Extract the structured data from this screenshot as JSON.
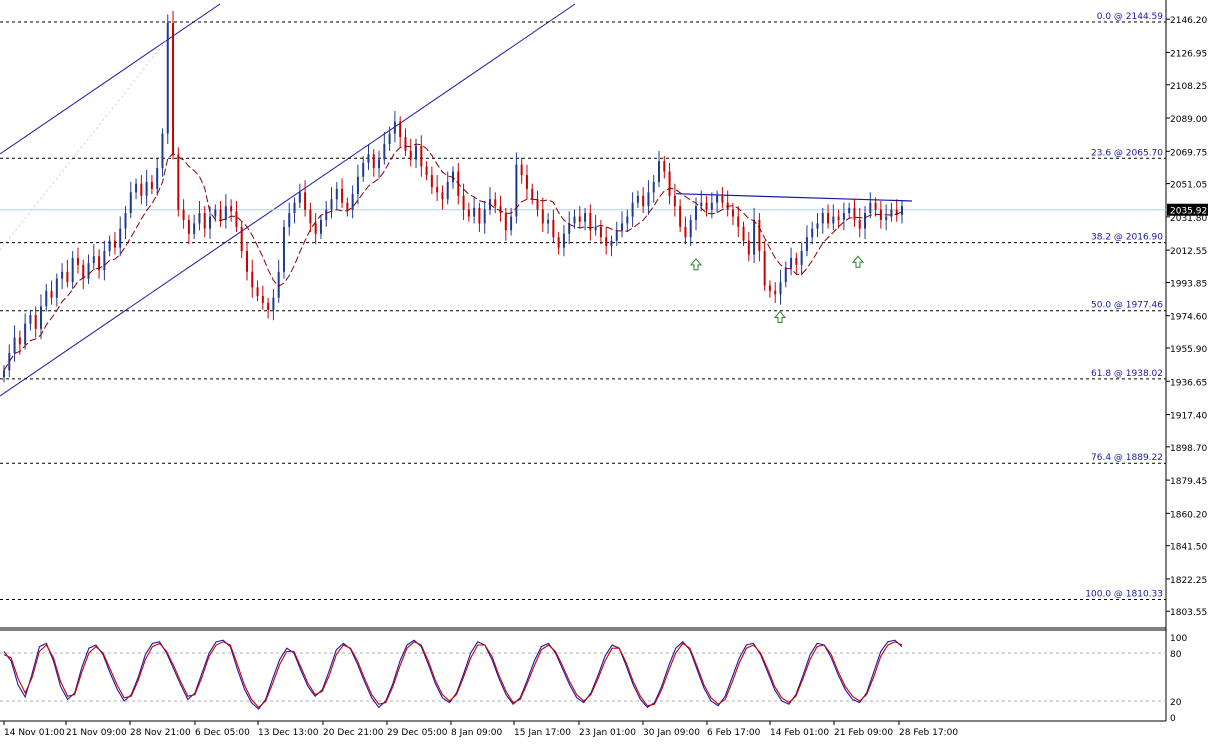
{
  "chart_data": [
    {
      "type": "candlestick",
      "ylim": [
        1795,
        2155
      ],
      "price_ticks": [
        "2146.20",
        "2126.95",
        "2108.25",
        "2089.00",
        "2069.75",
        "2051.05",
        "2031.80",
        "2012.55",
        "1993.85",
        "1974.60",
        "1955.90",
        "1936.65",
        "1917.40",
        "1898.70",
        "1879.45",
        "1860.20",
        "1841.50",
        "1822.25",
        "1803.55"
      ],
      "price_tick_values": [
        2146.2,
        2126.95,
        2108.25,
        2089.0,
        2069.75,
        2051.05,
        2031.8,
        2012.55,
        1993.85,
        1974.6,
        1955.9,
        1936.65,
        1917.4,
        1898.7,
        1879.45,
        1860.2,
        1841.5,
        1822.25,
        1803.55
      ],
      "current_price": 2035.92,
      "current_price_label": "2035.92",
      "fibonacci_levels": [
        {
          "label": "0.0 @ 2144.59",
          "value": 2144.59
        },
        {
          "label": "23.6 @ 2065.70",
          "value": 2065.7
        },
        {
          "label": "38.2 @ 2016.90",
          "value": 2016.9
        },
        {
          "label": "50.0 @ 1977.46",
          "value": 1977.46
        },
        {
          "label": "61.8 @ 1938.02",
          "value": 1938.02
        },
        {
          "label": "76.4 @ 1889.22",
          "value": 1889.22
        },
        {
          "label": "100.0 @ 1810.33",
          "value": 1810.33
        }
      ],
      "neckline": {
        "from": [
          0.57,
          2045.2
        ],
        "to": [
          0.78,
          2041.0
        ]
      },
      "x_ticks": [
        "14 Nov 01:00",
        "21 Nov 09:00",
        "28 Nov 21:00",
        "6 Dec 05:00",
        "13 Dec 13:00",
        "20 Dec 21:00",
        "29 Dec 05:00",
        "8 Jan 09:00",
        "15 Jan 17:00",
        "23 Jan 01:00",
        "30 Jan 09:00",
        "6 Feb 17:00",
        "14 Feb 01:00",
        "21 Feb 09:00",
        "28 Feb 17:00"
      ],
      "close_series": [
        1943,
        1953,
        1962,
        1958,
        1970,
        1975,
        1967,
        1980,
        1989,
        1985,
        1996,
        2000,
        1994,
        2008,
        2004,
        1996,
        2005,
        2009,
        2001,
        2012,
        2018,
        2014,
        2025,
        2034,
        2046,
        2051,
        2044,
        2052,
        2048,
        2060,
        2080,
        2144,
        2068,
        2036,
        2030,
        2022,
        2028,
        2034,
        2025,
        2032,
        2036,
        2030,
        2038,
        2035,
        2026,
        2012,
        2000,
        1991,
        1986,
        1982,
        1978,
        1985,
        2000,
        2026,
        2034,
        2040,
        2046,
        2036,
        2028,
        2022,
        2030,
        2036,
        2042,
        2048,
        2040,
        2036,
        2045,
        2055,
        2063,
        2068,
        2060,
        2065,
        2074,
        2080,
        2087,
        2078,
        2070,
        2065,
        2073,
        2061,
        2056,
        2049,
        2046,
        2042,
        2052,
        2058,
        2044,
        2036,
        2032,
        2037,
        2028,
        2036,
        2042,
        2038,
        2034,
        2024,
        2032,
        2062,
        2056,
        2048,
        2042,
        2036,
        2028,
        2030,
        2020,
        2014,
        2022,
        2028,
        2032,
        2029,
        2034,
        2024,
        2026,
        2020,
        2015,
        2018,
        2024,
        2028,
        2032,
        2040,
        2044,
        2038,
        2046,
        2052,
        2064,
        2058,
        2044,
        2038,
        2026,
        2020,
        2030,
        2038,
        2040,
        2036,
        2040,
        2044,
        2040,
        2036,
        2032,
        2026,
        2018,
        2010,
        2030,
        2012,
        1992,
        1989,
        1987,
        1994,
        2002,
        2008,
        2004,
        2012,
        2020,
        2025,
        2028,
        2034,
        2028,
        2032,
        2030,
        2034,
        2037,
        2030,
        2025,
        2034,
        2040,
        2036,
        2030,
        2032,
        2036,
        2033,
        2038
      ],
      "moving_average_color": "#8b0000",
      "up_color": "#1f3a93",
      "down_color": "#cc0000",
      "markers": [
        {
          "value": 2007.5
        },
        {
          "value": 1977.0
        },
        {
          "value": 2009.0
        }
      ]
    },
    {
      "type": "line",
      "ylim": [
        0,
        100
      ],
      "ticks": [
        "100",
        "80",
        "20",
        "0"
      ],
      "tick_values": [
        100,
        80,
        20,
        0
      ],
      "series": [
        {
          "color": "#1a1aa8",
          "values": [
            82,
            70,
            40,
            25,
            55,
            88,
            92,
            70,
            38,
            22,
            30,
            62,
            86,
            90,
            78,
            55,
            35,
            20,
            28,
            50,
            78,
            92,
            94,
            80,
            60,
            40,
            22,
            30,
            55,
            80,
            94,
            96,
            88,
            60,
            35,
            18,
            10,
            22,
            48,
            72,
            86,
            80,
            58,
            38,
            26,
            34,
            58,
            84,
            92,
            85,
            66,
            44,
            24,
            12,
            20,
            42,
            70,
            90,
            96,
            88,
            66,
            42,
            24,
            18,
            30,
            54,
            80,
            94,
            90,
            72,
            48,
            28,
            16,
            24,
            46,
            70,
            88,
            92,
            80,
            60,
            40,
            24,
            18,
            30,
            52,
            76,
            90,
            86,
            64,
            40,
            22,
            12,
            18,
            38,
            64,
            86,
            94,
            84,
            60,
            36,
            20,
            14,
            26,
            50,
            74,
            90,
            92,
            78,
            56,
            34,
            20,
            16,
            28,
            52,
            78,
            92,
            90,
            74,
            52,
            34,
            22,
            18,
            30,
            56,
            82,
            94,
            96,
            88
          ]
        },
        {
          "color": "#cc0000",
          "values": [
            78,
            74,
            48,
            30,
            50,
            82,
            90,
            74,
            44,
            26,
            28,
            56,
            80,
            88,
            80,
            60,
            40,
            24,
            26,
            46,
            72,
            88,
            92,
            82,
            64,
            44,
            26,
            28,
            50,
            76,
            90,
            94,
            90,
            66,
            40,
            22,
            12,
            20,
            42,
            66,
            82,
            82,
            62,
            42,
            28,
            32,
            52,
            78,
            90,
            86,
            70,
            48,
            28,
            16,
            18,
            38,
            64,
            86,
            94,
            90,
            70,
            46,
            28,
            20,
            28,
            50,
            74,
            90,
            90,
            76,
            52,
            32,
            18,
            22,
            42,
            64,
            84,
            90,
            82,
            64,
            44,
            28,
            20,
            28,
            48,
            70,
            86,
            86,
            68,
            44,
            26,
            14,
            16,
            34,
            58,
            80,
            92,
            86,
            64,
            40,
            24,
            16,
            22,
            44,
            68,
            86,
            90,
            80,
            60,
            38,
            24,
            18,
            26,
            48,
            72,
            88,
            90,
            78,
            56,
            38,
            26,
            20,
            28,
            50,
            76,
            90,
            94,
            90
          ]
        }
      ]
    }
  ]
}
